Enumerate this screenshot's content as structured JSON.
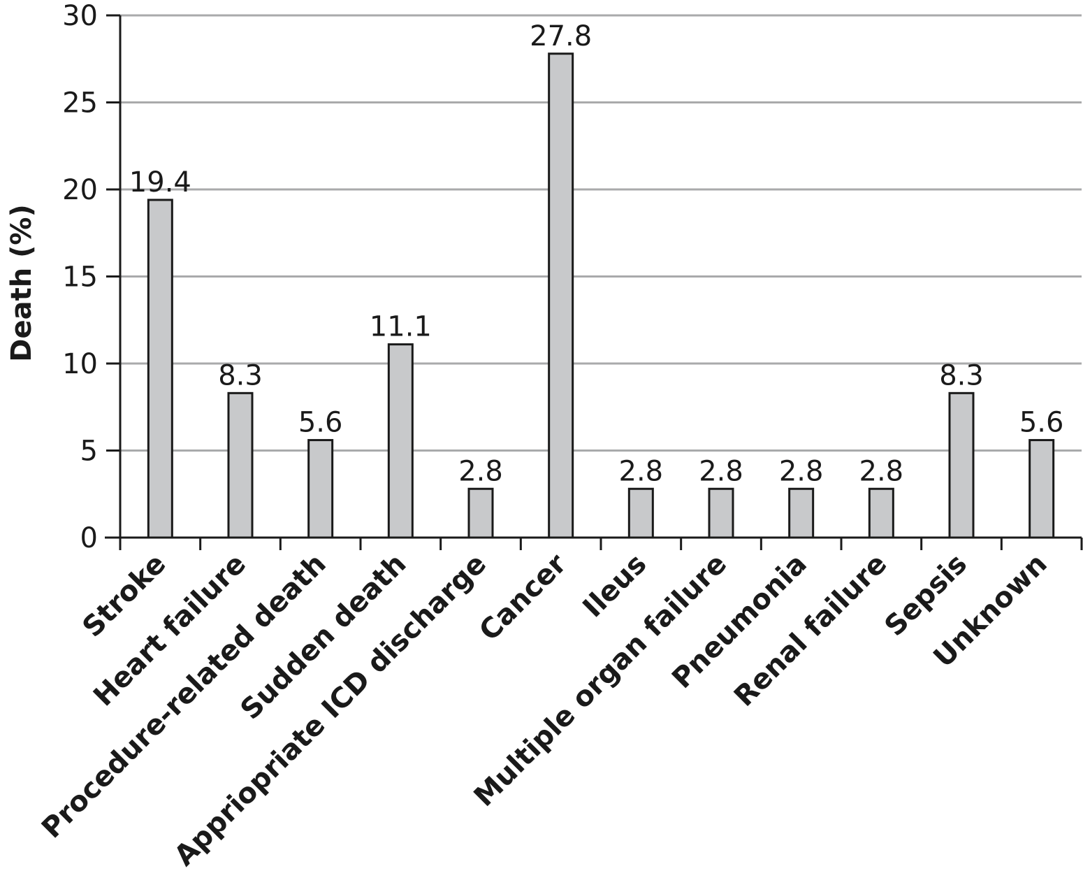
{
  "chart_data": {
    "type": "bar",
    "title": "",
    "xlabel": "",
    "ylabel": "Death (%)",
    "ylim": [
      0,
      30
    ],
    "yticks": [
      0,
      5,
      10,
      15,
      20,
      25,
      30
    ],
    "grid": true,
    "categories": [
      "Stroke",
      "Heart failure",
      "Procedure-related death",
      "Sudden death",
      "Appriopriate ICD discharge",
      "Cancer",
      "Ileus",
      "Multiple organ failure",
      "Pneumonia",
      "Renal failure",
      "Sepsis",
      "Unknown"
    ],
    "values": [
      19.4,
      8.3,
      5.6,
      11.1,
      2.8,
      27.8,
      2.8,
      2.8,
      2.8,
      2.8,
      8.3,
      5.6
    ],
    "colors": {
      "bar_fill": "#c8c9cb",
      "bar_stroke": "#1a1a1a",
      "grid": "#a9aaab",
      "axis": "#1a1a1a"
    }
  }
}
